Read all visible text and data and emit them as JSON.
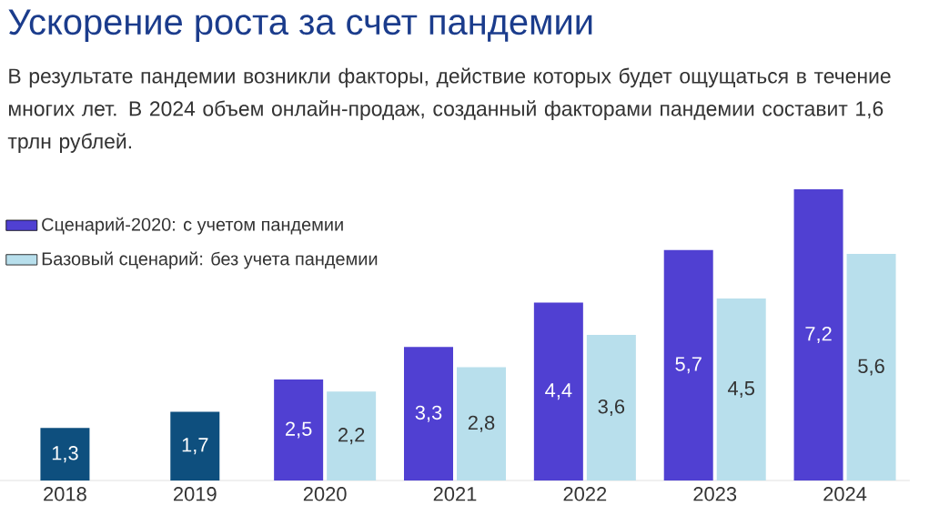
{
  "chart_data": {
    "type": "bar",
    "title": "Ускорение роста за счет пандемии",
    "subtitle": "В результате пандемии возникли факторы, действие которых будет ощущаться в течение многих лет. В 2024 объем онлайн-продаж, созданный факторами пандемии составит 1,6 трлн рублей.",
    "categories": [
      "2018",
      "2019",
      "2020",
      "2021",
      "2022",
      "2023",
      "2024"
    ],
    "series": [
      {
        "color": "#0e4f7e",
        "values": [
          1.3,
          1.7,
          null,
          null,
          null,
          null,
          null
        ],
        "value_labels": [
          "1,3",
          "1,7",
          null,
          null,
          null,
          null,
          null
        ]
      },
      {
        "name": "Сценарий-2020: с учетом пандемии",
        "color": "#5040d2",
        "values": [
          null,
          null,
          2.5,
          3.3,
          4.4,
          5.7,
          7.2
        ],
        "value_labels": [
          null,
          null,
          "2,5",
          "3,3",
          "4,4",
          "5,7",
          "7,2"
        ]
      },
      {
        "name": "Базовый сценарий: без учета пандемии",
        "color": "#b8dfec",
        "values": [
          null,
          null,
          2.2,
          2.8,
          3.6,
          4.5,
          5.6
        ],
        "value_labels": [
          null,
          null,
          "2,2",
          "2,8",
          "3,6",
          "4,5",
          "5,6"
        ]
      }
    ],
    "legend": "top left"
  }
}
